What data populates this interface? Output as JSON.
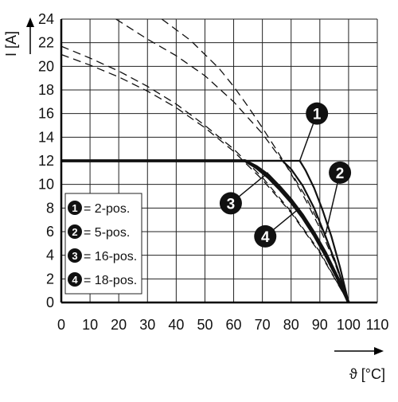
{
  "chart_data": {
    "type": "line",
    "xlabel": "ϑ [°C]",
    "ylabel": "I [A]",
    "xlim": [
      0,
      110
    ],
    "ylim": [
      0,
      24
    ],
    "x_ticks": [
      0,
      10,
      20,
      30,
      40,
      50,
      60,
      70,
      80,
      90,
      100,
      110
    ],
    "y_ticks": [
      0,
      2,
      4,
      6,
      8,
      10,
      12,
      14,
      16,
      18,
      20,
      22,
      24
    ],
    "grid": true,
    "legend": {
      "position": "bottom-left",
      "entries": [
        {
          "marker": "1",
          "label": "= 2-pos."
        },
        {
          "marker": "2",
          "label": "= 5-pos."
        },
        {
          "marker": "3",
          "label": "= 16-pos."
        },
        {
          "marker": "4",
          "label": "= 18-pos."
        }
      ]
    },
    "series": [
      {
        "marker": "1",
        "style": "solid",
        "x": [
          0,
          83,
          85,
          88,
          91,
          94,
          97,
          100
        ],
        "y": [
          12,
          12,
          11.2,
          9.7,
          7.8,
          5.6,
          3.0,
          0
        ]
      },
      {
        "marker": "2",
        "style": "solid",
        "x": [
          0,
          77,
          80,
          84,
          88,
          92,
          96,
          100
        ],
        "y": [
          12,
          12,
          11.3,
          9.9,
          8.0,
          5.6,
          3.0,
          0
        ]
      },
      {
        "marker": "3",
        "style": "solid",
        "x": [
          0,
          64,
          68,
          72,
          76,
          80,
          84,
          88,
          92,
          96,
          100
        ],
        "y": [
          12,
          12,
          11.5,
          10.8,
          9.8,
          8.7,
          7.4,
          5.9,
          4.2,
          2.2,
          0
        ]
      },
      {
        "marker": "4",
        "style": "solid",
        "x": [
          0,
          64,
          68,
          72,
          76,
          80,
          84,
          88,
          92,
          96,
          100
        ],
        "y": [
          12,
          12,
          11.4,
          10.6,
          9.6,
          8.5,
          7.2,
          5.7,
          4.0,
          2.1,
          0
        ]
      },
      {
        "marker": "1",
        "style": "dashed",
        "x": [
          19,
          30,
          40,
          50,
          60,
          70,
          80,
          85,
          90,
          95,
          100
        ],
        "y": [
          24,
          22.3,
          20.9,
          19.2,
          17.0,
          14.3,
          11.0,
          9.0,
          6.6,
          3.8,
          0
        ]
      },
      {
        "marker": "2",
        "style": "dashed",
        "x": [
          35,
          45,
          55,
          60,
          65,
          70,
          75,
          80,
          85,
          90,
          95,
          100
        ],
        "y": [
          24,
          22.2,
          19.8,
          18.3,
          16.6,
          14.8,
          12.9,
          10.9,
          8.7,
          6.3,
          3.5,
          0
        ]
      },
      {
        "marker": "3",
        "style": "dashed",
        "x": [
          0,
          10,
          20,
          30,
          40,
          50,
          60,
          70,
          80,
          90,
          100
        ],
        "y": [
          21.7,
          20.7,
          19.6,
          18.3,
          16.8,
          15.0,
          13.0,
          10.6,
          7.7,
          4.3,
          0
        ]
      },
      {
        "marker": "4",
        "style": "dashed",
        "x": [
          0,
          10,
          20,
          30,
          40,
          50,
          60,
          70,
          80,
          90,
          100
        ],
        "y": [
          21.0,
          20.1,
          19.1,
          17.9,
          16.5,
          14.8,
          12.8,
          10.4,
          7.6,
          4.2,
          0
        ]
      }
    ],
    "callouts": [
      {
        "marker": "1",
        "x": 89,
        "y": 16.0,
        "target_x": 83,
        "target_y": 12
      },
      {
        "marker": "2",
        "x": 97,
        "y": 11.0,
        "target_x": 92,
        "target_y": 5.8
      },
      {
        "marker": "3",
        "x": 59,
        "y": 8.4,
        "target_x": 72,
        "target_y": 11.0
      },
      {
        "marker": "4",
        "x": 71,
        "y": 5.6,
        "target_x": 83,
        "target_y": 8.0
      }
    ]
  }
}
